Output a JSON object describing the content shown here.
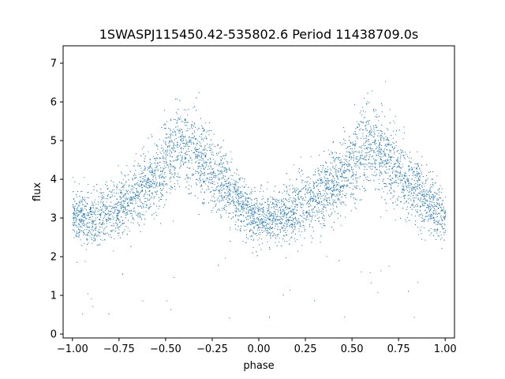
{
  "chart_data": {
    "type": "scatter",
    "title": "1SWASPJ115450.42-535802.6 Period 11438709.0s",
    "xlabel": "phase",
    "ylabel": "flux",
    "xlim": [
      -1.05,
      1.05
    ],
    "ylim": [
      -0.1,
      7.45
    ],
    "xticks": [
      -1.0,
      -0.75,
      -0.5,
      -0.25,
      0.0,
      0.25,
      0.5,
      0.75,
      1.0
    ],
    "xtick_labels": [
      "−1.00",
      "−0.75",
      "−0.50",
      "−0.25",
      "0.00",
      "0.25",
      "0.50",
      "0.75",
      "1.00"
    ],
    "yticks": [
      0,
      1,
      2,
      3,
      4,
      5,
      6,
      7
    ],
    "ytick_labels": [
      "0",
      "1",
      "2",
      "3",
      "4",
      "5",
      "6",
      "7"
    ],
    "grid": false,
    "marker_color": "#1f77b4",
    "series": [
      {
        "phase_profile": [
          {
            "x": -1.0,
            "y": 3.1
          },
          {
            "x": -0.9,
            "y": 3.0
          },
          {
            "x": -0.8,
            "y": 3.1
          },
          {
            "x": -0.7,
            "y": 3.5
          },
          {
            "x": -0.62,
            "y": 3.8
          },
          {
            "x": -0.55,
            "y": 4.1
          },
          {
            "x": -0.48,
            "y": 4.6
          },
          {
            "x": -0.42,
            "y": 4.9
          },
          {
            "x": -0.37,
            "y": 4.8
          },
          {
            "x": -0.3,
            "y": 4.4
          },
          {
            "x": -0.22,
            "y": 4.0
          },
          {
            "x": -0.12,
            "y": 3.5
          },
          {
            "x": -0.02,
            "y": 3.0
          },
          {
            "x": 0.08,
            "y": 3.0
          },
          {
            "x": 0.18,
            "y": 3.1
          },
          {
            "x": 0.28,
            "y": 3.5
          },
          {
            "x": 0.38,
            "y": 3.8
          },
          {
            "x": 0.45,
            "y": 4.1
          },
          {
            "x": 0.52,
            "y": 4.6
          },
          {
            "x": 0.58,
            "y": 4.9
          },
          {
            "x": 0.63,
            "y": 4.8
          },
          {
            "x": 0.7,
            "y": 4.4
          },
          {
            "x": 0.78,
            "y": 4.0
          },
          {
            "x": 0.88,
            "y": 3.5
          },
          {
            "x": 0.98,
            "y": 3.0
          },
          {
            "x": 1.0,
            "y": 3.1
          }
        ],
        "spread": 0.45
      }
    ]
  }
}
